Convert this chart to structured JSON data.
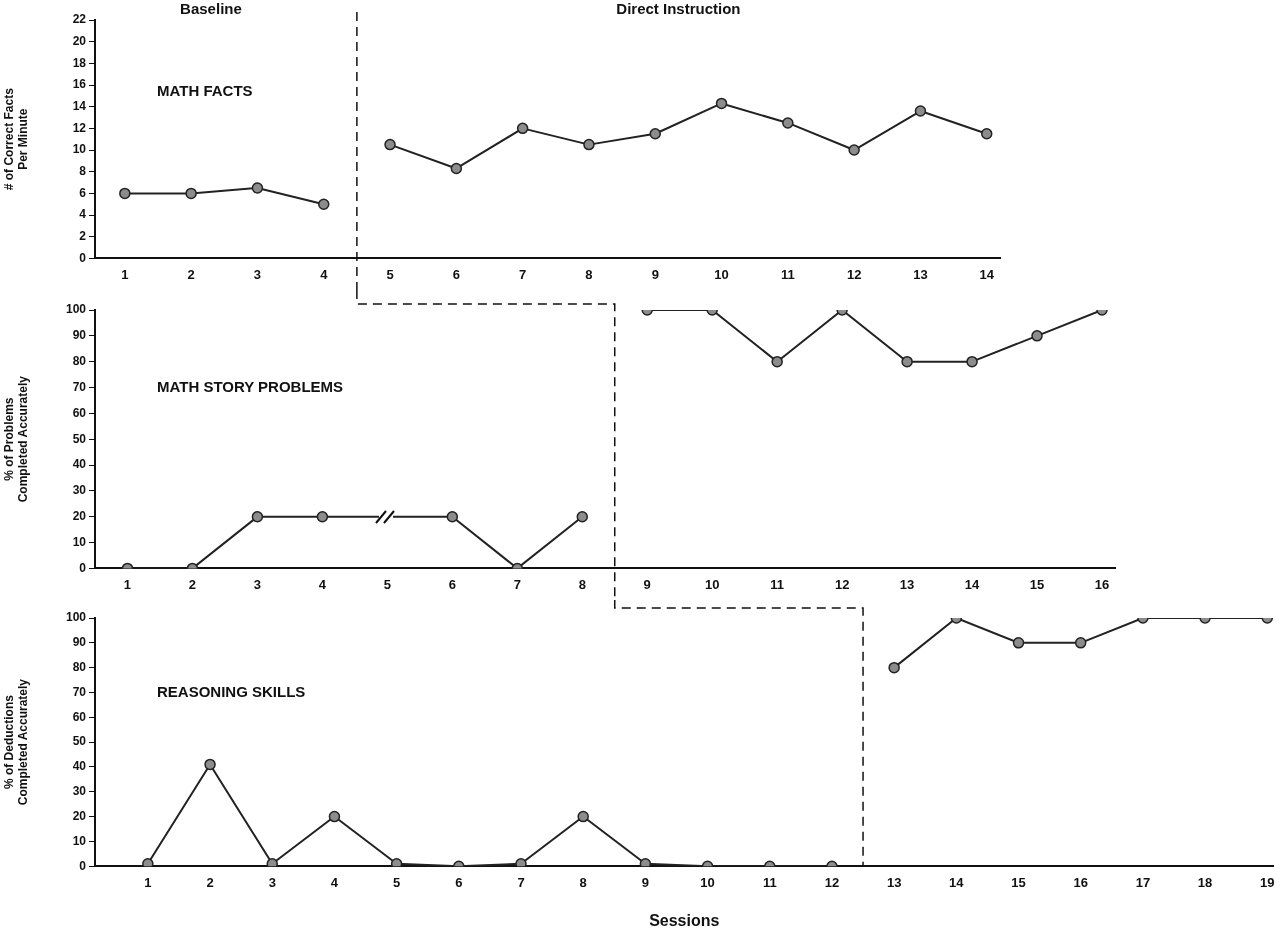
{
  "chart_data": [
    {
      "type": "line",
      "title": "MATH FACTS",
      "ylabel": "# of Correct Facts Per Minute",
      "annotations": [
        "Baseline",
        "Direct Instruction"
      ],
      "x": [
        1,
        2,
        3,
        4,
        5,
        6,
        7,
        8,
        9,
        10,
        11,
        12,
        13,
        14
      ],
      "xlim": [
        0.55,
        14.2
      ],
      "xticks": [
        1,
        2,
        3,
        4,
        5,
        6,
        7,
        8,
        9,
        10,
        11,
        12,
        13,
        14
      ],
      "ylim": [
        0,
        22
      ],
      "yticks": [
        0,
        2,
        4,
        6,
        8,
        10,
        12,
        14,
        16,
        18,
        20,
        22
      ],
      "series": [
        {
          "color": "#222222",
          "values": [
            6,
            6,
            6.5,
            5,
            null,
            null,
            null,
            null,
            null,
            null,
            null,
            null,
            null,
            null
          ]
        },
        {
          "color": "#222222",
          "values": [
            null,
            null,
            null,
            null,
            10.5,
            8.3,
            12,
            10.5,
            11.5,
            14.3,
            12.5,
            10,
            13.6,
            11.5
          ]
        }
      ],
      "ref_lines": [
        {
          "axis": "x",
          "value": 4.5,
          "line_style": "dashed"
        }
      ],
      "marker": "circle",
      "grid": false,
      "legend": false
    },
    {
      "type": "line",
      "title": "MATH STORY PROBLEMS",
      "ylabel": "% of Problems Completed Accurately",
      "x": [
        1,
        2,
        3,
        4,
        5,
        6,
        7,
        8,
        9,
        10,
        11,
        12,
        13,
        14,
        15,
        16
      ],
      "xlim": [
        0.5,
        16.2
      ],
      "xticks": [
        1,
        2,
        3,
        4,
        5,
        6,
        7,
        8,
        9,
        10,
        11,
        12,
        13,
        14,
        15,
        16
      ],
      "ylim": [
        0,
        100
      ],
      "yticks": [
        0,
        10,
        20,
        30,
        40,
        50,
        60,
        70,
        80,
        90,
        100
      ],
      "series": [
        {
          "color": "#222222",
          "values": [
            0,
            0,
            20,
            20,
            null,
            20,
            0,
            20,
            null,
            null,
            null,
            null,
            null,
            null,
            null,
            null
          ]
        },
        {
          "color": "#222222",
          "values": [
            null,
            null,
            null,
            null,
            null,
            null,
            null,
            null,
            100,
            100,
            80,
            100,
            80,
            80,
            90,
            100
          ]
        }
      ],
      "ref_lines": [
        {
          "axis": "x",
          "value": 8.5,
          "line_style": "dashed"
        }
      ],
      "marker": "circle",
      "grid": false,
      "legend": false
    },
    {
      "type": "line",
      "title": "REASONING SKILLS",
      "ylabel": "% of Deductions Completed Accurately",
      "xlabel": "Sessions",
      "x": [
        1,
        2,
        3,
        4,
        5,
        6,
        7,
        8,
        9,
        10,
        11,
        12,
        13,
        14,
        15,
        16,
        17,
        18,
        19
      ],
      "xlim": [
        0.15,
        19.1
      ],
      "xticks": [
        1,
        2,
        3,
        4,
        5,
        6,
        7,
        8,
        9,
        10,
        11,
        12,
        13,
        14,
        15,
        16,
        17,
        18,
        19
      ],
      "ylim": [
        0,
        100
      ],
      "yticks": [
        0,
        10,
        20,
        30,
        40,
        50,
        60,
        70,
        80,
        90,
        100
      ],
      "series": [
        {
          "color": "#222222",
          "values": [
            1,
            41,
            1,
            20,
            1,
            0,
            1,
            20,
            1,
            0,
            0,
            0,
            null,
            null,
            null,
            null,
            null,
            null,
            null
          ]
        },
        {
          "color": "#222222",
          "values": [
            null,
            null,
            null,
            null,
            null,
            null,
            null,
            null,
            null,
            null,
            null,
            null,
            80,
            100,
            90,
            90,
            100,
            100,
            100
          ]
        }
      ],
      "ref_lines": [
        {
          "axis": "x",
          "value": 12.5,
          "line_style": "dashed"
        }
      ],
      "marker": "circle",
      "grid": false,
      "legend": false
    }
  ]
}
